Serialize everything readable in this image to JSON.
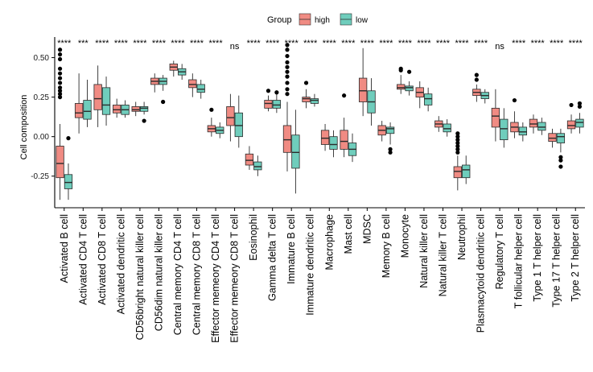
{
  "chart_data": {
    "type": "box",
    "ylabel": "Cell composition",
    "ylim": [
      -0.45,
      0.62
    ],
    "yticks": [
      0.5,
      0.25,
      0.0,
      -0.25
    ],
    "ytick_labels": [
      "0.50",
      "0.25",
      "0.00",
      "-0.25"
    ],
    "legend": {
      "title": "Group",
      "position": "top",
      "entries": [
        {
          "name": "high",
          "color": "#F08B83"
        },
        {
          "name": "low",
          "color": "#6FCDBC"
        }
      ]
    },
    "categories": [
      "Activated B cell",
      "Activated CD4 T cell",
      "Activated CD8 T cell",
      "Activated dendritic cell",
      "CD56bright natural killer cell",
      "CD56dim natural killer cell",
      "Central memory CD4 T cell",
      "Central memory CD8 T cell",
      "Effector memeory CD4 T cell",
      "Effector memeory CD8 T cell",
      "Eosinophil",
      "Gamma delta T cell",
      "Immature  B cell",
      "Immature dendritic cell",
      "Macrophage",
      "Mast cell",
      "MDSC",
      "Memory B cell",
      "Monocyte",
      "Natural killer cell",
      "Natural killer T cell",
      "Neutrophil",
      "Plasmacytoid dendritic cell",
      "Regulatory T cell",
      "T follicular helper cell",
      "Type 1 T helper cell",
      "Type 17 T helper cell",
      "Type 2 T helper cell"
    ],
    "significance": [
      "****",
      "***",
      "****",
      "****",
      "****",
      "****",
      "****",
      "****",
      "****",
      "ns",
      "****",
      "****",
      "****",
      "****",
      "****",
      "****",
      "****",
      "****",
      "****",
      "****",
      "****",
      "****",
      "****",
      "ns",
      "****",
      "****",
      "****",
      "****"
    ],
    "series": [
      {
        "name": "high",
        "color": "#F08B83",
        "boxes": [
          {
            "lo": -0.4,
            "q1": -0.26,
            "med": -0.17,
            "q3": -0.06,
            "hi": 0.08,
            "out": [
              0.55,
              0.52,
              0.49,
              0.43,
              0.4,
              0.37,
              0.34,
              0.31,
              0.29,
              0.27,
              0.25
            ]
          },
          {
            "lo": 0.02,
            "q1": 0.12,
            "med": 0.15,
            "q3": 0.21,
            "hi": 0.4,
            "out": []
          },
          {
            "lo": 0.06,
            "q1": 0.17,
            "med": 0.24,
            "q3": 0.33,
            "hi": 0.45,
            "out": []
          },
          {
            "lo": 0.12,
            "q1": 0.15,
            "med": 0.17,
            "q3": 0.2,
            "hi": 0.24,
            "out": []
          },
          {
            "lo": 0.13,
            "q1": 0.16,
            "med": 0.17,
            "q3": 0.19,
            "hi": 0.22,
            "out": []
          },
          {
            "lo": 0.28,
            "q1": 0.33,
            "med": 0.35,
            "q3": 0.37,
            "hi": 0.4,
            "out": []
          },
          {
            "lo": 0.38,
            "q1": 0.42,
            "med": 0.44,
            "q3": 0.46,
            "hi": 0.48,
            "out": []
          },
          {
            "lo": 0.25,
            "q1": 0.31,
            "med": 0.33,
            "q3": 0.36,
            "hi": 0.4,
            "out": []
          },
          {
            "lo": 0.0,
            "q1": 0.03,
            "med": 0.05,
            "q3": 0.07,
            "hi": 0.12,
            "out": [
              0.17
            ]
          },
          {
            "lo": -0.03,
            "q1": 0.07,
            "med": 0.12,
            "q3": 0.19,
            "hi": 0.27,
            "out": []
          },
          {
            "lo": -0.21,
            "q1": -0.18,
            "med": -0.15,
            "q3": -0.11,
            "hi": -0.06,
            "out": []
          },
          {
            "lo": 0.16,
            "q1": 0.18,
            "med": 0.21,
            "q3": 0.23,
            "hi": 0.26,
            "out": [
              0.29
            ]
          },
          {
            "lo": -0.22,
            "q1": -0.1,
            "med": -0.02,
            "q3": 0.07,
            "hi": 0.22,
            "out": [
              0.58,
              0.55,
              0.51,
              0.47,
              0.44,
              0.41,
              0.38,
              0.34,
              0.3,
              0.27
            ]
          },
          {
            "lo": 0.18,
            "q1": 0.22,
            "med": 0.24,
            "q3": 0.25,
            "hi": 0.3,
            "out": [
              0.34
            ]
          },
          {
            "lo": -0.09,
            "q1": -0.05,
            "med": -0.01,
            "q3": 0.04,
            "hi": 0.08,
            "out": []
          },
          {
            "lo": -0.13,
            "q1": -0.08,
            "med": -0.03,
            "q3": 0.04,
            "hi": 0.12,
            "out": [
              0.26
            ]
          },
          {
            "lo": 0.13,
            "q1": 0.22,
            "med": 0.29,
            "q3": 0.37,
            "hi": 0.56,
            "out": []
          },
          {
            "lo": -0.03,
            "q1": 0.01,
            "med": 0.04,
            "q3": 0.07,
            "hi": 0.1,
            "out": []
          },
          {
            "lo": 0.27,
            "q1": 0.3,
            "med": 0.31,
            "q3": 0.33,
            "hi": 0.39,
            "out": [
              0.43,
              0.42
            ]
          },
          {
            "lo": 0.18,
            "q1": 0.25,
            "med": 0.28,
            "q3": 0.31,
            "hi": 0.35,
            "out": []
          },
          {
            "lo": 0.03,
            "q1": 0.06,
            "med": 0.08,
            "q3": 0.1,
            "hi": 0.13,
            "out": []
          },
          {
            "lo": -0.34,
            "q1": -0.26,
            "med": -0.22,
            "q3": -0.19,
            "hi": -0.12,
            "out": [
              0.02,
              0.0,
              -0.02,
              -0.04,
              -0.06,
              -0.08,
              -0.1
            ]
          },
          {
            "lo": 0.22,
            "q1": 0.26,
            "med": 0.28,
            "q3": 0.3,
            "hi": 0.33,
            "out": [
              0.36,
              0.39
            ]
          },
          {
            "lo": -0.03,
            "q1": 0.06,
            "med": 0.13,
            "q3": 0.18,
            "hi": 0.3,
            "out": []
          },
          {
            "lo": -0.01,
            "q1": 0.03,
            "med": 0.06,
            "q3": 0.09,
            "hi": 0.16,
            "out": [
              0.23
            ]
          },
          {
            "lo": 0.02,
            "q1": 0.06,
            "med": 0.08,
            "q3": 0.11,
            "hi": 0.14,
            "out": []
          },
          {
            "lo": -0.07,
            "q1": -0.03,
            "med": -0.01,
            "q3": 0.02,
            "hi": 0.05,
            "out": []
          },
          {
            "lo": 0.02,
            "q1": 0.05,
            "med": 0.07,
            "q3": 0.1,
            "hi": 0.14,
            "out": [
              0.2
            ]
          }
        ]
      },
      {
        "name": "low",
        "color": "#6FCDBC",
        "boxes": [
          {
            "lo": -0.4,
            "q1": -0.33,
            "med": -0.29,
            "q3": -0.24,
            "hi": -0.17,
            "out": [
              -0.01
            ]
          },
          {
            "lo": 0.06,
            "q1": 0.11,
            "med": 0.16,
            "q3": 0.23,
            "hi": 0.36,
            "out": []
          },
          {
            "lo": 0.07,
            "q1": 0.14,
            "med": 0.2,
            "q3": 0.31,
            "hi": 0.38,
            "out": []
          },
          {
            "lo": 0.12,
            "q1": 0.14,
            "med": 0.17,
            "q3": 0.2,
            "hi": 0.23,
            "out": []
          },
          {
            "lo": 0.14,
            "q1": 0.16,
            "med": 0.18,
            "q3": 0.19,
            "hi": 0.22,
            "out": [
              0.1
            ]
          },
          {
            "lo": 0.29,
            "q1": 0.33,
            "med": 0.35,
            "q3": 0.37,
            "hi": 0.39,
            "out": [
              0.22
            ]
          },
          {
            "lo": 0.36,
            "q1": 0.39,
            "med": 0.41,
            "q3": 0.43,
            "hi": 0.46,
            "out": []
          },
          {
            "lo": 0.24,
            "q1": 0.28,
            "med": 0.3,
            "q3": 0.33,
            "hi": 0.36,
            "out": []
          },
          {
            "lo": -0.01,
            "q1": 0.02,
            "med": 0.04,
            "q3": 0.06,
            "hi": 0.09,
            "out": []
          },
          {
            "lo": -0.07,
            "q1": 0.0,
            "med": 0.07,
            "q3": 0.15,
            "hi": 0.26,
            "out": []
          },
          {
            "lo": -0.25,
            "q1": -0.21,
            "med": -0.19,
            "q3": -0.16,
            "hi": -0.12,
            "out": []
          },
          {
            "lo": 0.15,
            "q1": 0.18,
            "med": 0.2,
            "q3": 0.23,
            "hi": 0.27,
            "out": [
              0.28
            ]
          },
          {
            "lo": -0.36,
            "q1": -0.2,
            "med": -0.1,
            "q3": 0.01,
            "hi": 0.17,
            "out": []
          },
          {
            "lo": 0.19,
            "q1": 0.21,
            "med": 0.23,
            "q3": 0.24,
            "hi": 0.27,
            "out": []
          },
          {
            "lo": -0.13,
            "q1": -0.08,
            "med": -0.05,
            "q3": 0.0,
            "hi": 0.04,
            "out": []
          },
          {
            "lo": -0.16,
            "q1": -0.12,
            "med": -0.08,
            "q3": -0.04,
            "hi": 0.02,
            "out": []
          },
          {
            "lo": 0.07,
            "q1": 0.15,
            "med": 0.22,
            "q3": 0.29,
            "hi": 0.37,
            "out": []
          },
          {
            "lo": -0.05,
            "q1": 0.02,
            "med": 0.05,
            "q3": 0.06,
            "hi": 0.09,
            "out": [
              -0.08,
              -0.1
            ]
          },
          {
            "lo": 0.26,
            "q1": 0.29,
            "med": 0.31,
            "q3": 0.32,
            "hi": 0.35,
            "out": [
              0.41
            ]
          },
          {
            "lo": 0.16,
            "q1": 0.2,
            "med": 0.24,
            "q3": 0.27,
            "hi": 0.31,
            "out": []
          },
          {
            "lo": 0.0,
            "q1": 0.03,
            "med": 0.05,
            "q3": 0.08,
            "hi": 0.11,
            "out": []
          },
          {
            "lo": -0.3,
            "q1": -0.26,
            "med": -0.21,
            "q3": -0.18,
            "hi": -0.12,
            "out": []
          },
          {
            "lo": 0.21,
            "q1": 0.24,
            "med": 0.26,
            "q3": 0.28,
            "hi": 0.3,
            "out": []
          },
          {
            "lo": -0.07,
            "q1": -0.02,
            "med": 0.05,
            "q3": 0.11,
            "hi": 0.18,
            "out": []
          },
          {
            "lo": -0.03,
            "q1": 0.01,
            "med": 0.03,
            "q3": 0.06,
            "hi": 0.09,
            "out": []
          },
          {
            "lo": 0.01,
            "q1": 0.04,
            "med": 0.06,
            "q3": 0.09,
            "hi": 0.12,
            "out": []
          },
          {
            "lo": -0.1,
            "q1": -0.04,
            "med": 0.0,
            "q3": 0.02,
            "hi": 0.05,
            "out": [
              -0.13,
              -0.15,
              -0.19
            ]
          },
          {
            "lo": 0.02,
            "q1": 0.06,
            "med": 0.09,
            "q3": 0.11,
            "hi": 0.15,
            "out": [
              0.21,
              0.19
            ]
          }
        ]
      }
    ]
  }
}
